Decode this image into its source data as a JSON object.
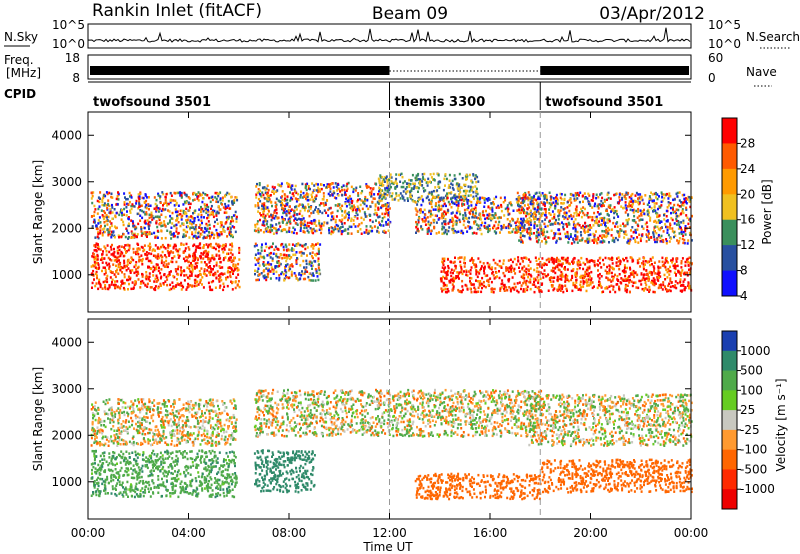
{
  "header": {
    "station": "Rankin Inlet (fitACF)",
    "beam": "Beam 09",
    "date": "03/Apr/2012"
  },
  "top_panels": {
    "nsky_label": "N.Sky",
    "nsearch_label": "N.Search",
    "freq_label_line1": "Freq.",
    "freq_label_line2": "[MHz]",
    "nave_label": "Nave",
    "cpid_label": "CPID",
    "nsky_ticks": [
      "10^5",
      "10^0"
    ],
    "nsearch_ticks": [
      "10^5",
      "10^0"
    ],
    "freq_ticks": [
      "18",
      "8"
    ],
    "nave_ticks": [
      "60",
      "0"
    ]
  },
  "cpid_segments": [
    {
      "label": "twofsound 3501",
      "start_hour": 0,
      "end_hour": 12
    },
    {
      "label": "themis 3300",
      "start_hour": 12,
      "end_hour": 18
    },
    {
      "label": "twofsound 3501",
      "start_hour": 18,
      "end_hour": 24
    }
  ],
  "power_colorbar": {
    "label": "Power [dB]",
    "ticks": [
      "28",
      "24",
      "20",
      "16",
      "12",
      "8",
      "4"
    ],
    "colors": [
      "#ff0000",
      "#ff5a00",
      "#ff9a00",
      "#f0c020",
      "#3a8f5c",
      "#2850a0",
      "#1010ff"
    ]
  },
  "velocity_colorbar": {
    "label": "Velocity [m s⁻¹]",
    "ticks": [
      "1000",
      "500",
      "100",
      "25",
      "-25",
      "-100",
      "-500",
      "-1000"
    ],
    "colors": [
      "#1a3fb0",
      "#2f8a6a",
      "#4faa4a",
      "#66cc22",
      "#c8c8c0",
      "#ff9a30",
      "#ff6600",
      "#ff2a00",
      "#ee0000"
    ]
  },
  "chart_data": {
    "type": "heatmap",
    "xlabel": "Time UT",
    "x_ticks": [
      "00:00",
      "04:00",
      "08:00",
      "12:00",
      "16:00",
      "20:00",
      "00:00"
    ],
    "xlim_hours": [
      0,
      24
    ],
    "ylabel": "Slant Range [km]",
    "y_ticks": [
      4000,
      3000,
      2000,
      1000
    ],
    "ylim_km": [
      200,
      4500
    ],
    "cpid_change_hours": [
      12,
      18
    ],
    "power_echo_regions": [
      {
        "t0": 0.1,
        "t1": 5.9,
        "r0": 1800,
        "r1": 2800,
        "level": "mixed"
      },
      {
        "t0": 0.1,
        "t1": 6.0,
        "r0": 700,
        "r1": 1700,
        "level": "high"
      },
      {
        "t0": 6.6,
        "t1": 12.0,
        "r0": 1900,
        "r1": 3000,
        "level": "mixed"
      },
      {
        "t0": 6.6,
        "t1": 9.2,
        "r0": 900,
        "r1": 1700,
        "level": "mixed"
      },
      {
        "t0": 11.5,
        "t1": 15.5,
        "r0": 2600,
        "r1": 3200,
        "level": "mid"
      },
      {
        "t0": 13.0,
        "t1": 18.0,
        "r0": 1900,
        "r1": 2700,
        "level": "mixed"
      },
      {
        "t0": 14.0,
        "t1": 24.0,
        "r0": 650,
        "r1": 1400,
        "level": "high"
      },
      {
        "t0": 17.0,
        "t1": 24.0,
        "r0": 1700,
        "r1": 2800,
        "level": "mixed"
      }
    ],
    "velocity_echo_regions": [
      {
        "t0": 0.1,
        "t1": 5.9,
        "r0": 700,
        "r1": 1700,
        "velocity": 200
      },
      {
        "t0": 0.1,
        "t1": 5.9,
        "r0": 1800,
        "r1": 2800,
        "velocity": 0
      },
      {
        "t0": 6.6,
        "t1": 9.0,
        "r0": 800,
        "r1": 1700,
        "velocity": 600
      },
      {
        "t0": 6.6,
        "t1": 12.0,
        "r0": 2000,
        "r1": 3000,
        "velocity": 0
      },
      {
        "t0": 12.0,
        "t1": 18.0,
        "r0": 2000,
        "r1": 3000,
        "velocity": 0
      },
      {
        "t0": 13.0,
        "t1": 18.0,
        "r0": 650,
        "r1": 1200,
        "velocity": -300
      },
      {
        "t0": 18.0,
        "t1": 24.0,
        "r0": 800,
        "r1": 1500,
        "velocity": -300
      },
      {
        "t0": 17.5,
        "t1": 24.0,
        "r0": 1800,
        "r1": 2900,
        "velocity": 0
      }
    ]
  }
}
